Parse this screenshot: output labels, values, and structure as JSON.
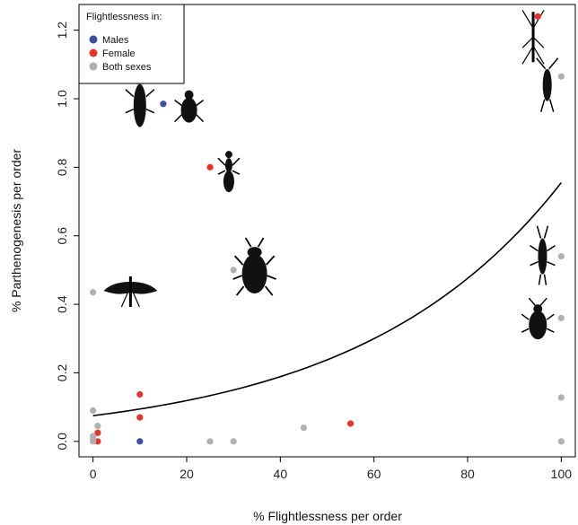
{
  "chart_data": {
    "type": "scatter",
    "xlabel": "% Flightlessness per order",
    "ylabel": "% Parthenogenesis per order",
    "xlim": [
      -3,
      103
    ],
    "ylim": [
      -0.045,
      1.275
    ],
    "xticks": [
      "0",
      "20",
      "40",
      "60",
      "80",
      "100"
    ],
    "yticks": [
      "0.0",
      "0.2",
      "0.4",
      "0.6",
      "0.8",
      "1.0",
      "1.2"
    ],
    "grid": false,
    "legend": {
      "title": "Flightlessness in:",
      "placement": "top-left",
      "entries": [
        {
          "label": "Males",
          "color": "#3b4fa3"
        },
        {
          "label": "Female",
          "color": "#e8332a"
        },
        {
          "label": "Both sexes",
          "color": "#b0b0b0"
        }
      ]
    },
    "series": [
      {
        "name": "Males",
        "color": "#3b4fa3",
        "points": [
          [
            15,
            0.985
          ],
          [
            10,
            0.0
          ]
        ]
      },
      {
        "name": "Female",
        "color": "#e8332a",
        "points": [
          [
            95,
            1.24
          ],
          [
            25,
            0.8
          ],
          [
            10,
            0.137
          ],
          [
            10,
            0.07
          ],
          [
            55,
            0.052
          ],
          [
            1,
            0.025
          ],
          [
            1,
            0.0
          ]
        ]
      },
      {
        "name": "Both sexes",
        "color": "#b0b0b0",
        "points": [
          [
            100,
            1.065
          ],
          [
            30,
            0.5
          ],
          [
            100,
            0.54
          ],
          [
            0,
            0.435
          ],
          [
            100,
            0.36
          ],
          [
            100,
            0.128
          ],
          [
            0,
            0.09
          ],
          [
            1,
            0.045
          ],
          [
            45,
            0.04
          ],
          [
            0,
            0.015
          ],
          [
            0,
            0.005
          ],
          [
            0,
            0.0
          ],
          [
            25,
            0.0
          ],
          [
            30,
            0.0
          ],
          [
            100,
            0.0
          ]
        ]
      }
    ],
    "trend": {
      "label": "fitted exponential curve",
      "x_range": [
        0,
        100
      ],
      "y_at_0": 0.075,
      "y_at_100": 0.755
    },
    "silhouettes": [
      {
        "icon": "stick-insect-icon",
        "x": 94,
        "y": 1.18
      },
      {
        "icon": "earwig-icon",
        "x": 97,
        "y": 1.04
      },
      {
        "icon": "thrips-icon",
        "x": 10,
        "y": 0.98
      },
      {
        "icon": "beetle-icon",
        "x": 20.5,
        "y": 0.98
      },
      {
        "icon": "ant-icon",
        "x": 29,
        "y": 0.79
      },
      {
        "icon": "beetle-large-icon",
        "x": 34.5,
        "y": 0.51
      },
      {
        "icon": "mayfly-icon",
        "x": 8,
        "y": 0.45
      },
      {
        "icon": "stonefly-icon",
        "x": 96,
        "y": 0.54
      },
      {
        "icon": "cockroach-icon",
        "x": 95,
        "y": 0.35
      }
    ]
  }
}
